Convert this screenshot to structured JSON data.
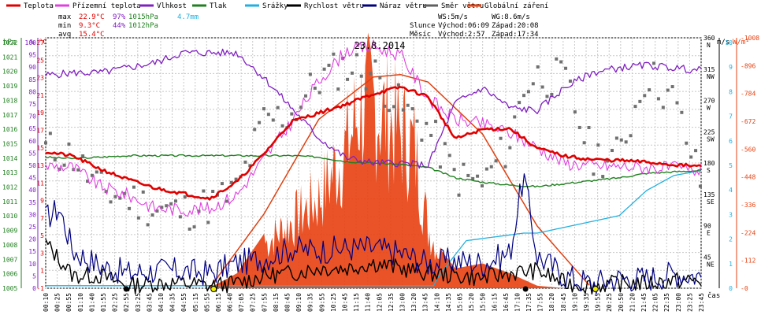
{
  "legend": [
    {
      "name": "Teplota",
      "color": "#e00000"
    },
    {
      "name": "Přízemní teplota",
      "color": "#e040e0"
    },
    {
      "name": "Vlhkost",
      "color": "#8020c0"
    },
    {
      "name": "Tlak",
      "color": "#208020"
    },
    {
      "name": "Srážky",
      "color": "#20b0e0"
    },
    {
      "name": "Rychlost větru",
      "color": "#000000"
    },
    {
      "name": "Náraz větru",
      "color": "#000080"
    },
    {
      "name": "Směr větru",
      "color": "#606060"
    },
    {
      "name": "Globální záření",
      "color": "#e84010"
    }
  ],
  "stats": {
    "max_label": "max",
    "max_temp": "22.9°C",
    "max_hum": "97%",
    "max_press": "1015hPa",
    "rain": "4.7mm",
    "min_label": "min",
    "min_temp": "9.3°C",
    "min_hum": "44%",
    "min_press": "1012hPa",
    "avg_label": "avg",
    "avg_temp": "15.4°C"
  },
  "wind": {
    "ws": "WS:5m/s",
    "wg": "WG:8.6m/s"
  },
  "sun": {
    "label": "Slunce",
    "rise": "Východ:06:09",
    "set": "Západ:20:08"
  },
  "moon": {
    "label": "Měsíc",
    "rise": "Východ:2:57",
    "set": "Západ:17:34"
  },
  "date": "23.8.2014",
  "axis_units": {
    "hpa": "hPa",
    "pct": "%",
    "c": "°C",
    "ms": "m/s",
    "wm": "W/m²",
    "time": "čas"
  },
  "axes": {
    "hpa": [
      "1022",
      "1021",
      "1020",
      "1019",
      "1018",
      "1017",
      "1016",
      "1015",
      "1014",
      "1013",
      "1012",
      "1011",
      "1010",
      "1009",
      "1008",
      "1007",
      "1006",
      "1005"
    ],
    "pct": [
      "100",
      "95",
      "90",
      "85",
      "80",
      "75",
      "70",
      "65",
      "60",
      "55",
      "50",
      "45",
      "40",
      "35",
      "30",
      "25",
      "20",
      "15",
      "10",
      "5",
      "0"
    ],
    "c": [
      "27",
      "25",
      "23",
      "21",
      "19",
      "17",
      "15",
      "13",
      "11",
      "9",
      "7",
      "5",
      "3",
      "1",
      "-1"
    ],
    "dir": [
      "360",
      "N",
      "315",
      "NW",
      "270",
      "W",
      "225",
      "SW",
      "180",
      "S",
      "135",
      "SE",
      "90",
      "E",
      "45",
      "NE"
    ],
    "ms": [
      "10",
      "9",
      "8",
      "7",
      "6",
      "5",
      "4",
      "3",
      "2",
      "1",
      "0"
    ],
    "wm": [
      "1008",
      "896",
      "784",
      "672",
      "560",
      "448",
      "336",
      "224",
      "112",
      "0"
    ],
    "dir_ticks": [
      {
        "v": "360",
        "l": "N"
      },
      {
        "v": "315",
        "l": "NW"
      },
      {
        "v": "270",
        "l": "W"
      },
      {
        "v": "225",
        "l": "SW"
      },
      {
        "v": "180",
        "l": "S"
      },
      {
        "v": "135",
        "l": "SE"
      },
      {
        "v": "90",
        "l": "E"
      },
      {
        "v": "45",
        "l": "NE"
      }
    ]
  },
  "time_labels": [
    "00:10",
    "00:25",
    "00:55",
    "01:10",
    "01:40",
    "01:55",
    "02:25",
    "02:55",
    "03:25",
    "03:45",
    "04:10",
    "04:35",
    "04:55",
    "05:15",
    "05:55",
    "06:15",
    "06:40",
    "07:05",
    "07:25",
    "07:55",
    "08:15",
    "08:45",
    "09:10",
    "09:35",
    "09:55",
    "10:25",
    "10:45",
    "11:15",
    "11:40",
    "12:05",
    "12:35",
    "13:00",
    "13:20",
    "13:45",
    "14:10",
    "14:35",
    "15:05",
    "15:20",
    "15:50",
    "16:15",
    "16:45",
    "17:10",
    "17:35",
    "17:55",
    "18:20",
    "18:45",
    "19:10",
    "19:35",
    "19:55",
    "20:25",
    "20:50",
    "21:20",
    "21:45",
    "22:05",
    "22:35",
    "23:00",
    "23:25",
    "23:45"
  ],
  "chart_data": {
    "type": "line",
    "title": "23.8.2014",
    "x_unit": "hour of day",
    "series": [
      {
        "name": "Teplota",
        "unit": "°C",
        "axis": "c",
        "x": [
          0,
          1,
          2,
          3,
          4,
          5,
          6,
          7,
          8,
          9,
          10,
          11,
          12,
          13,
          14,
          15,
          16,
          17,
          18,
          19,
          20,
          21,
          22,
          23,
          24
        ],
        "y": [
          14.8,
          14.3,
          12.8,
          11.6,
          10.6,
          10.0,
          9.4,
          11.3,
          14.6,
          18.3,
          19.3,
          20.3,
          21.5,
          22.3,
          21.2,
          16.3,
          17.4,
          17.5,
          15.2,
          14.3,
          13.9,
          13.8,
          13.6,
          13.3,
          13.1
        ]
      },
      {
        "name": "Přízemní teplota",
        "unit": "°C",
        "axis": "c",
        "x": [
          0,
          1,
          2,
          3,
          4,
          5,
          6,
          7,
          8,
          9,
          10,
          11,
          12,
          13,
          14,
          15,
          16,
          17,
          18,
          19,
          20,
          21,
          22,
          23,
          24
        ],
        "y": [
          13.2,
          13.0,
          10.8,
          9.8,
          8.3,
          8.1,
          8.2,
          9.8,
          14.0,
          18.2,
          23.0,
          26.5,
          27.0,
          26.0,
          21.0,
          18.5,
          18.0,
          17.0,
          15.3,
          13.5,
          13.2,
          13.1,
          13.0,
          12.9,
          12.6
        ]
      },
      {
        "name": "Vlhkost",
        "unit": "%",
        "axis": "pct",
        "x": [
          0,
          1,
          2,
          3,
          4,
          5,
          6,
          7,
          8,
          9,
          10,
          11,
          12,
          13,
          14,
          15,
          16,
          17,
          18,
          19,
          20,
          21,
          22,
          23,
          24
        ],
        "y": [
          85,
          86,
          86,
          88,
          90,
          94,
          94,
          94,
          84,
          72,
          60,
          52,
          50,
          50,
          49,
          74,
          80,
          72,
          71,
          80,
          86,
          88,
          89,
          88,
          87
        ]
      },
      {
        "name": "Tlak",
        "unit": "hPa",
        "axis": "hpa",
        "x": [
          0,
          1,
          2,
          3,
          4,
          5,
          6,
          7,
          8,
          9,
          10,
          11,
          12,
          13,
          14,
          15,
          16,
          17,
          18,
          19,
          20,
          21,
          22,
          23,
          24
        ],
        "y": [
          1013.9,
          1013.8,
          1013.9,
          1014.0,
          1014.0,
          1014.0,
          1014.0,
          1014.0,
          1014.0,
          1014.0,
          1013.9,
          1013.6,
          1013.5,
          1013.4,
          1013.2,
          1012.5,
          1012.2,
          1012.0,
          1011.9,
          1012.1,
          1012.3,
          1012.5,
          1012.8,
          1012.9,
          1013.0
        ]
      },
      {
        "name": "Srážky",
        "unit": "mm",
        "axis": "ms",
        "x": [
          0,
          6,
          14.2,
          14.4,
          15.4,
          17.5,
          18.0,
          21.0,
          22.0,
          23.0,
          24.0
        ],
        "y": [
          0.1,
          0.1,
          0.1,
          0.5,
          1.9,
          2.2,
          2.2,
          2.9,
          3.9,
          4.5,
          4.7
        ]
      },
      {
        "name": "Rychlost větru",
        "unit": "m/s",
        "axis": "ms",
        "x": [
          0,
          1,
          2,
          3,
          4,
          5,
          6,
          7,
          8,
          9,
          10,
          11,
          12,
          13,
          14,
          15,
          16,
          17,
          18,
          19,
          20,
          21,
          22,
          23,
          24
        ],
        "y": [
          1.8,
          0.5,
          0.5,
          0.1,
          0.2,
          0.2,
          0.1,
          0.2,
          0.5,
          0.6,
          0.8,
          0.8,
          1.0,
          0.8,
          0.6,
          0.5,
          0.4,
          0.6,
          0.7,
          0.2,
          0.1,
          0.2,
          0.2,
          0.3,
          0.3
        ]
      },
      {
        "name": "Náraz větru",
        "unit": "m/s",
        "axis": "ms",
        "x": [
          0,
          0.5,
          1,
          2,
          3,
          4,
          5,
          6,
          7,
          8,
          9,
          10,
          11,
          12,
          13,
          14,
          15,
          16,
          17,
          17.5,
          18,
          19,
          20,
          21,
          22,
          23,
          24
        ],
        "y": [
          2.8,
          3.2,
          1.5,
          0.9,
          0.6,
          0.7,
          0.7,
          0.6,
          1.0,
          1.2,
          1.6,
          1.5,
          1.6,
          1.6,
          1.4,
          1.0,
          1.1,
          1.0,
          1.4,
          4.5,
          1.3,
          0.5,
          0.2,
          0.4,
          0.4,
          0.6,
          0.5
        ]
      },
      {
        "name": "Globální záření",
        "unit": "W/m²",
        "axis": "wm",
        "x": [
          0,
          6,
          7,
          8,
          9,
          10,
          11,
          11.5,
          12,
          12.5,
          13,
          13.5,
          14,
          14.5,
          15,
          16,
          17,
          18,
          19,
          24
        ],
        "y": [
          0,
          0,
          60,
          220,
          330,
          450,
          700,
          900,
          920,
          850,
          780,
          700,
          300,
          150,
          80,
          100,
          60,
          10,
          0,
          0
        ]
      }
    ],
    "clear_sky_radiation": {
      "x": [
        6,
        8,
        10,
        12,
        13,
        14,
        16,
        18,
        20
      ],
      "y": [
        0,
        300,
        680,
        850,
        860,
        830,
        620,
        250,
        0
      ]
    },
    "wind_direction_deg": {
      "x": [
        0,
        0.5,
        1,
        2,
        3,
        4,
        5,
        6,
        7,
        8,
        9,
        10,
        11,
        12,
        13,
        14,
        15,
        16,
        17,
        17.5,
        18,
        19,
        20,
        21,
        22,
        23,
        24
      ],
      "y": [
        200,
        195,
        190,
        140,
        130,
        115,
        110,
        120,
        140,
        240,
        250,
        300,
        320,
        310,
        260,
        230,
        160,
        150,
        210,
        290,
        305,
        300,
        190,
        190,
        310,
        270,
        150
      ]
    },
    "xlim": [
      0,
      24
    ],
    "ylim": {
      "c": [
        -1,
        28
      ],
      "pct": [
        0,
        100
      ],
      "hpa": [
        1005,
        1022
      ],
      "ms": [
        0,
        10
      ],
      "wm": [
        0,
        1008
      ],
      "dir": [
        0,
        360
      ]
    },
    "grid": true
  }
}
